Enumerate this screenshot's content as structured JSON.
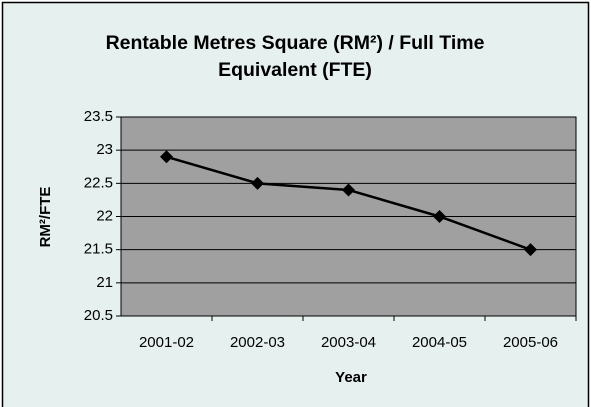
{
  "chart_data": {
    "type": "line",
    "title": "Rentable Metres Square (RM²) / Full Time Equivalent (FTE)",
    "x_label": "Year",
    "y_label": "RM²/FTE",
    "categories": [
      "2001-02",
      "2002-03",
      "2003-04",
      "2004-05",
      "2005-06"
    ],
    "values": [
      22.9,
      22.5,
      22.4,
      22.0,
      21.5
    ],
    "color": "#000000",
    "ylim": [
      20.5,
      23.5
    ],
    "yticks": [
      20.5,
      21,
      21.5,
      22,
      22.5,
      23,
      23.5
    ],
    "grid": true
  }
}
